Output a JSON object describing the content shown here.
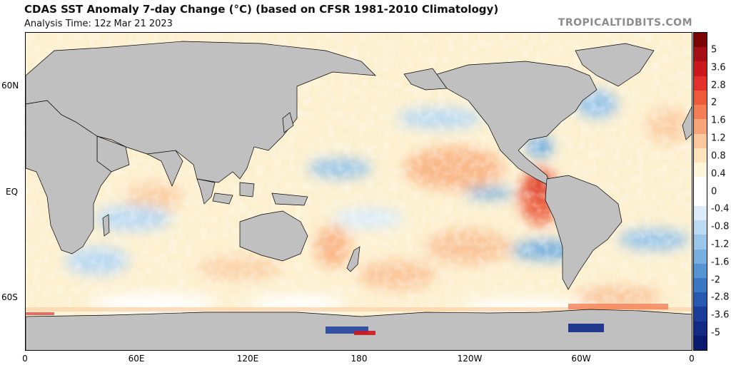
{
  "header": {
    "title": "CDAS SST Anomaly 7-day Change (°C) (based on CFSR 1981-2010 Climatology)",
    "analysis_time": "Analysis Time: 12z Mar 21 2023",
    "credit": "TROPICALTIDBITS.COM"
  },
  "map": {
    "projection": "equirectangular, 0–360 longitude",
    "lat_labels": [
      "60N",
      "EQ",
      "60S"
    ],
    "lon_labels": [
      "0",
      "60E",
      "120E",
      "180",
      "120W",
      "60W",
      "0"
    ],
    "land_color": "#c0c0c0",
    "ocean_neutral_color": "#ffffff"
  },
  "colorbar": {
    "labels": [
      "5",
      "3.6",
      "2.8",
      "2",
      "1.6",
      "1.2",
      "0.8",
      "0.4",
      "0",
      "-0.4",
      "-0.8",
      "-1.2",
      "-1.6",
      "-2",
      "-2.8",
      "-3.6",
      "-5"
    ],
    "colors_top_to_bottom": [
      "#7a0403",
      "#a50f15",
      "#cb181d",
      "#e3302a",
      "#ef5a3c",
      "#f47f56",
      "#f8a479",
      "#fbc89d",
      "#fde4bd",
      "#fff5d9",
      "#ffffff",
      "#ffffff",
      "#dcecf8",
      "#bcdaf2",
      "#9ac6ea",
      "#77b0e0",
      "#5595d4",
      "#3a78c4",
      "#2659b0",
      "#1a3d9a",
      "#102a86",
      "#0a1a6e"
    ]
  }
}
